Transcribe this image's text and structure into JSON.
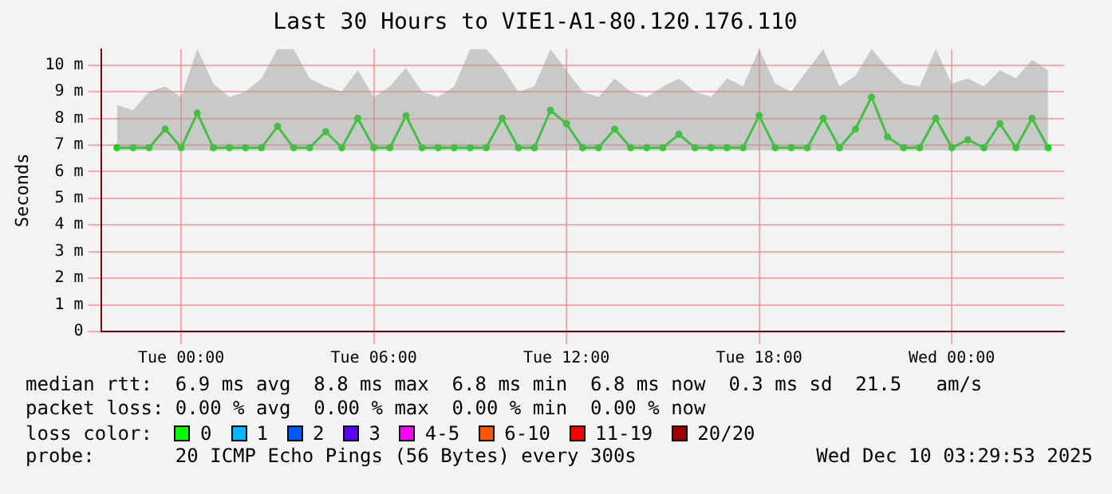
{
  "chart_data": {
    "type": "line",
    "title": "Last 30 Hours to VIE1-A1-80.120.176.110",
    "ylabel": "Seconds",
    "x": [
      "2025-12-08T22:00",
      "2025-12-08T22:30",
      "2025-12-08T23:00",
      "2025-12-08T23:30",
      "2025-12-09T00:00",
      "2025-12-09T00:30",
      "2025-12-09T01:00",
      "2025-12-09T01:30",
      "2025-12-09T02:00",
      "2025-12-09T02:30",
      "2025-12-09T03:00",
      "2025-12-09T03:30",
      "2025-12-09T04:00",
      "2025-12-09T04:30",
      "2025-12-09T05:00",
      "2025-12-09T05:30",
      "2025-12-09T06:00",
      "2025-12-09T06:30",
      "2025-12-09T07:00",
      "2025-12-09T07:30",
      "2025-12-09T08:00",
      "2025-12-09T08:30",
      "2025-12-09T09:00",
      "2025-12-09T09:30",
      "2025-12-09T10:00",
      "2025-12-09T10:30",
      "2025-12-09T11:00",
      "2025-12-09T11:30",
      "2025-12-09T12:00",
      "2025-12-09T12:30",
      "2025-12-09T13:00",
      "2025-12-09T13:30",
      "2025-12-09T14:00",
      "2025-12-09T14:30",
      "2025-12-09T15:00",
      "2025-12-09T15:30",
      "2025-12-09T16:00",
      "2025-12-09T16:30",
      "2025-12-09T17:00",
      "2025-12-09T17:30",
      "2025-12-09T18:00",
      "2025-12-09T18:30",
      "2025-12-09T19:00",
      "2025-12-09T19:30",
      "2025-12-09T20:00",
      "2025-12-09T20:30",
      "2025-12-09T21:00",
      "2025-12-09T21:30",
      "2025-12-09T22:00",
      "2025-12-09T22:30",
      "2025-12-09T23:00",
      "2025-12-09T23:30",
      "2025-12-10T00:00",
      "2025-12-10T00:30",
      "2025-12-10T01:00",
      "2025-12-10T01:30",
      "2025-12-10T02:00",
      "2025-12-10T02:30",
      "2025-12-10T03:00"
    ],
    "series": [
      {
        "color": "#00e000",
        "values": [
          6.9,
          6.9,
          6.9,
          7.6,
          6.9,
          8.2,
          6.9,
          6.9,
          6.9,
          6.9,
          7.7,
          6.9,
          6.9,
          7.5,
          6.9,
          8.0,
          6.9,
          6.9,
          8.1,
          6.9,
          6.9,
          6.9,
          6.9,
          6.9,
          8.0,
          6.9,
          6.9,
          8.3,
          7.8,
          6.9,
          6.9,
          7.6,
          6.9,
          6.9,
          6.9,
          7.4,
          6.9,
          6.9,
          6.9,
          6.9,
          8.1,
          6.9,
          6.9,
          6.9,
          8.0,
          6.9,
          7.6,
          8.8,
          7.3,
          6.9,
          6.9,
          8.0,
          6.9,
          7.2,
          6.9,
          7.8,
          6.9,
          8.0,
          6.9
        ],
        "lower": [
          6.8,
          6.8,
          6.8,
          6.8,
          6.8,
          6.8,
          6.8,
          6.8,
          6.8,
          6.8,
          6.8,
          6.8,
          6.8,
          6.8,
          6.8,
          6.8,
          6.8,
          6.8,
          6.8,
          6.8,
          6.8,
          6.8,
          6.8,
          6.8,
          6.8,
          6.8,
          6.8,
          6.8,
          6.8,
          6.8,
          6.8,
          6.8,
          6.8,
          6.8,
          6.8,
          6.8,
          6.8,
          6.8,
          6.8,
          6.8,
          6.8,
          6.8,
          6.8,
          6.8,
          6.8,
          6.8,
          6.8,
          6.8,
          6.8,
          6.8,
          6.8,
          6.8,
          6.8,
          6.8,
          6.8,
          6.8,
          6.8,
          6.8,
          6.8
        ],
        "upper": [
          8.5,
          8.3,
          9.0,
          9.2,
          8.8,
          10.6,
          9.3,
          8.8,
          9.0,
          9.5,
          10.6,
          10.6,
          9.5,
          9.2,
          9.0,
          9.8,
          8.8,
          9.2,
          9.9,
          9.0,
          8.8,
          9.2,
          10.6,
          10.6,
          9.9,
          9.0,
          9.2,
          10.6,
          9.8,
          9.0,
          8.8,
          9.5,
          9.0,
          8.8,
          9.2,
          9.5,
          9.0,
          8.8,
          9.5,
          9.2,
          10.6,
          9.3,
          9.0,
          9.8,
          10.6,
          9.2,
          9.6,
          10.6,
          9.9,
          9.3,
          9.2,
          10.6,
          9.3,
          9.5,
          9.2,
          9.8,
          9.5,
          10.2,
          9.8
        ]
      }
    ],
    "xlim": [
      "2025-12-08T21:30",
      "2025-12-10T03:30"
    ],
    "xticks": [
      {
        "value": "2025-12-09T00:00",
        "label": "Tue 00:00"
      },
      {
        "value": "2025-12-09T06:00",
        "label": "Tue 06:00"
      },
      {
        "value": "2025-12-09T12:00",
        "label": "Tue 12:00"
      },
      {
        "value": "2025-12-09T18:00",
        "label": "Tue 18:00"
      },
      {
        "value": "2025-12-10T00:00",
        "label": "Wed 00:00"
      }
    ],
    "ylim": [
      0,
      10.6
    ],
    "yticks": [
      0,
      {
        "value": 1,
        "label": "1 m"
      },
      {
        "value": 2,
        "label": "2 m"
      },
      {
        "value": 3,
        "label": "3 m"
      },
      {
        "value": 4,
        "label": "4 m"
      },
      {
        "value": 5,
        "label": "5 m"
      },
      {
        "value": 6,
        "label": "6 m"
      },
      {
        "value": 7,
        "label": "7 m"
      },
      {
        "value": 8,
        "label": "8 m"
      },
      {
        "value": 9,
        "label": "9 m"
      },
      {
        "value": 10,
        "label": "10 m"
      }
    ],
    "grid": true,
    "legend": false,
    "marker": "circle",
    "line_style": "solid",
    "annotations": [
      "median rtt:  6.9 ms avg  8.8 ms max  6.8 ms min  6.8 ms now  0.3 ms sd  21.5   am/s",
      "packet loss: 0.00 % avg  0.00 % max  0.00 % min  0.00 % now",
      "loss color:",
      "0",
      "1",
      "2",
      "3",
      "4-5",
      "6-10",
      "11-19",
      "20/20",
      "probe:       20 ICMP Echo Pings (56 Bytes) every 300s",
      "Wed Dec 10 03:29:53 2025"
    ]
  }
}
